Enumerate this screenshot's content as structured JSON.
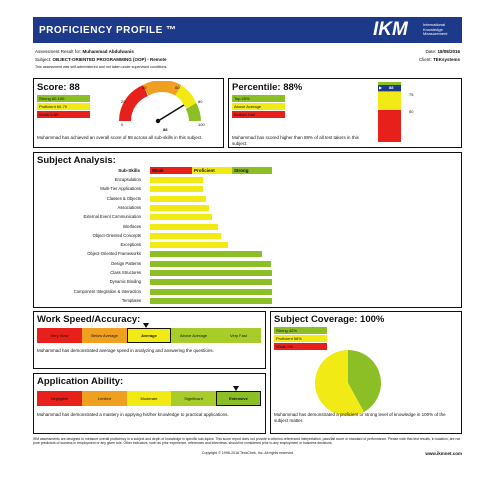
{
  "header": {
    "title": "PROFICIENCY PROFILE ™",
    "logo_main": "IKM",
    "logo_sub": [
      "International",
      "Knowledge",
      "Measurement"
    ]
  },
  "meta": {
    "assessment_label": "Assessment Result for:",
    "assessment_name": "Muhammad Abdulwanis",
    "date_label": "Date:",
    "date_value": "18/08/2016",
    "subject_label": "Subject:",
    "subject_value": "OBJECT-ORIENTED PROGRAMMING (OOP) - Remote",
    "client_label": "Client:",
    "client_value": "TEKsystems",
    "note": "This assessment was self-administered and not taken under supervised conditions."
  },
  "score": {
    "title": "Score: 88",
    "legend": [
      "Strong 80-100",
      "Proficient 60-79",
      "Weak 0-59"
    ],
    "gauge_ticks": [
      "20",
      "40",
      "60",
      "80",
      "100"
    ],
    "gauge_zero": "0",
    "gauge_value_label": "88",
    "value": 88,
    "description": "Muhammad has achieved an overall score of 88 across all sub-skills in this subject."
  },
  "percentile": {
    "title": "Percentile: 88%",
    "legend": [
      "Top 25%",
      "Above Average",
      "Bottom Half"
    ],
    "marker_label": "88",
    "scale": [
      "75",
      "50"
    ],
    "value": 88,
    "description": "Muhammad has scored higher than 88% of all test takers in this subject."
  },
  "subject_analysis": {
    "title": "Subject Analysis:",
    "header_label": "Sub-Skills",
    "columns": [
      "Weak",
      "Proficient",
      "Strong"
    ],
    "skills": [
      {
        "name": "Encapsulation",
        "level": 0.34
      },
      {
        "name": "Multi-Tier Applications",
        "level": 0.34
      },
      {
        "name": "Classes & Objects",
        "level": 0.36
      },
      {
        "name": "Associations",
        "level": 0.38
      },
      {
        "name": "External Event Communication",
        "level": 0.4
      },
      {
        "name": "Interfaces",
        "level": 0.44
      },
      {
        "name": "Object-Oriented Concepts",
        "level": 0.46
      },
      {
        "name": "Exceptions",
        "level": 0.5
      },
      {
        "name": "Object-Oriented Frameworks",
        "level": 0.72
      },
      {
        "name": "Design Patterns",
        "level": 0.78
      },
      {
        "name": "Class Structures",
        "level": 0.84
      },
      {
        "name": "Dynamic Binding",
        "level": 0.92
      },
      {
        "name": "Component Integration & Interaction",
        "level": 0.92
      },
      {
        "name": "Templates",
        "level": 0.92
      }
    ]
  },
  "work_speed": {
    "title": "Work Speed/Accuracy:",
    "levels": [
      "Very Slow",
      "Below Average",
      "Average",
      "Above Average",
      "Very Fast"
    ],
    "selected": "Average",
    "description": "Muhammad has demonstrated average speed in analyzing and answering the questions."
  },
  "subject_coverage": {
    "title": "Subject Coverage: 100%",
    "legend": [
      "Strong 42%",
      "Proficient 58%",
      "Weak 0%"
    ],
    "values": {
      "strong": 42,
      "proficient": 58,
      "weak": 0
    },
    "description": "Muhammad has demonstrated a proficient or strong level of knowledge in 100% of the subject matter."
  },
  "application_ability": {
    "title": "Application Ability:",
    "levels": [
      "Negligible",
      "Limited",
      "Moderate",
      "Significant",
      "Extensive"
    ],
    "selected": "Extensive",
    "description": "Muhammad has demonstrated a mastery in applying his/her knowledge to practical applications."
  },
  "footer": {
    "disclaimer": "IKM assessments are designed to measure overall proficiency in a subject and depth of knowledge in specific sub-topics. This score report does not provide a criterion-referenced interpretation, pass/fail score or standard of performance. Please note that test results, in isolation, are not pure predictors of success in employment or any given role. Other indicators, such as prior experience, references and interviews, should be considered prior to any employment or business decisions.",
    "copyright": "Copyright © 1996-2016 TeckChek, Inc. All rights reserved",
    "url": "www.ikmnet.com"
  },
  "colors": {
    "header_bg": "#1d3a8a",
    "weak": "#e8201c",
    "proficient": "#f2ea15",
    "strong": "#8cbf26",
    "orange": "#f0a020"
  }
}
